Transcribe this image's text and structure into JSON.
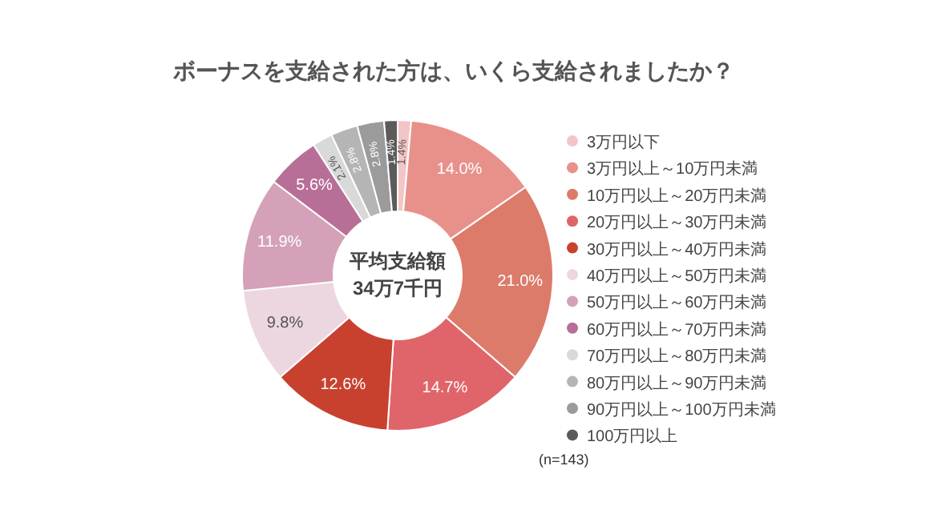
{
  "chart_data": {
    "type": "donut",
    "title": "ボーナスを支給された方は、いくら支給されましたか？",
    "categories": [
      "3万円以下",
      "3万円以上～10万円未満",
      "10万円以上～20万円未満",
      "20万円以上～30万円未満",
      "30万円以上～40万円未満",
      "40万円以上～50万円未満",
      "50万円以上～60万円未満",
      "60万円以上～70万円未満",
      "70万円以上～80万円未満",
      "80万円以上～90万円未満",
      "90万円以上～100万円未満",
      "100万円以上"
    ],
    "values": [
      1.4,
      14.0,
      21.0,
      14.7,
      12.6,
      9.8,
      11.9,
      5.6,
      2.1,
      2.8,
      2.8,
      1.4
    ],
    "colors": [
      "#f2c6c6",
      "#e8918b",
      "#dc7b69",
      "#e0656a",
      "#c8412f",
      "#ecd7e0",
      "#d4a1b9",
      "#b86f97",
      "#d9d9d9",
      "#b5b5b5",
      "#9b9b9b",
      "#5b5b5b"
    ],
    "value_labels": [
      "1.4%",
      "14.0%",
      "21.0%",
      "14.7%",
      "12.6%",
      "9.8%",
      "11.9%",
      "5.6%",
      "2.1%",
      "2.8%",
      "2.8%",
      "1.4%"
    ],
    "legend": "right",
    "annotations": [
      "平均支給額\n34万7千円",
      "(n=143)"
    ]
  }
}
